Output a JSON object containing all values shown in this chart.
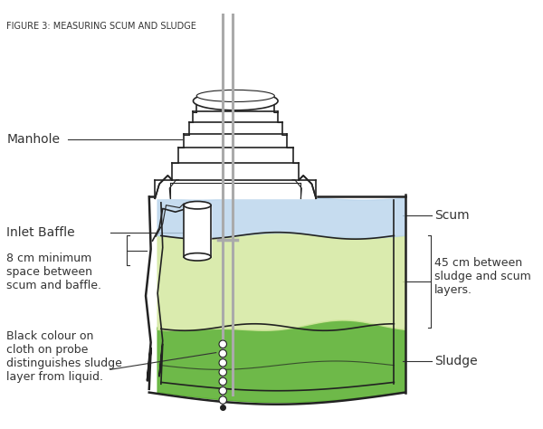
{
  "title": "FIGURE 3: MEASURING SCUM AND SLUDGE",
  "title_fontsize": 7,
  "title_color": "#333333",
  "bg_color": "#ffffff",
  "label_fontsize": 10,
  "labels": {
    "manhole": "Manhole",
    "inlet_baffle": "Inlet Baffle",
    "scum_label": "Scum",
    "sludge_label": "Sludge",
    "space_label": "8 cm minimum\nspace between\nscum and baffle.",
    "distance_label": "45 cm between\nsludge and scum\nlayers.",
    "probe_label": "Black colour on\ncloth on probe\ndistinguishes sludge\nlayer from liquid."
  },
  "colors": {
    "scum_fill": "#b8d4ec",
    "liquid_fill": "#d4e8a0",
    "sludge_fill": "#5ab030",
    "white": "#ffffff",
    "outline": "#222222",
    "probe_rod": "#aaaaaa",
    "ann": "#333333"
  },
  "lw": {
    "thick": 1.8,
    "med": 1.2,
    "thin": 0.8
  }
}
